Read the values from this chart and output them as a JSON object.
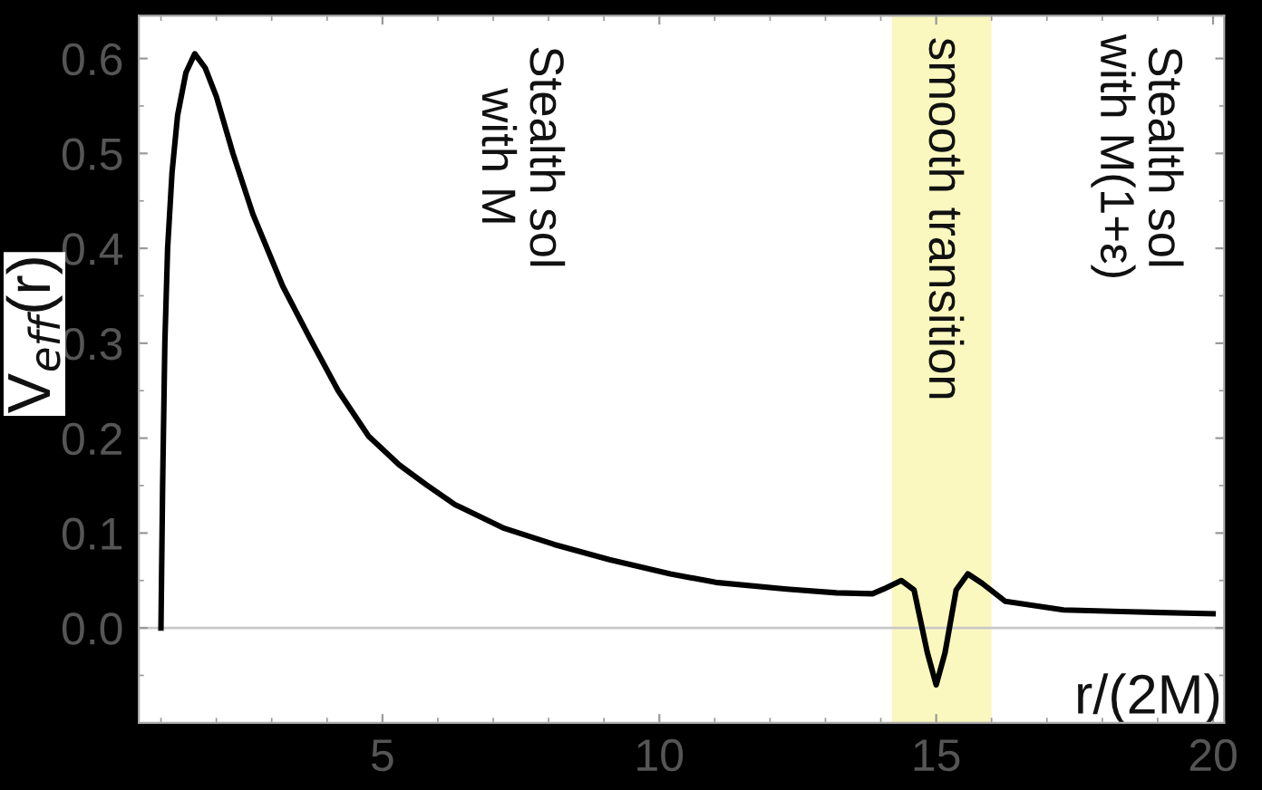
{
  "chart_data": {
    "type": "line",
    "xlabel": "r/(2M)",
    "ylabel": "V$_{eff}$(r)",
    "x": [
      1.0,
      1.03,
      1.07,
      1.12,
      1.2,
      1.3,
      1.45,
      1.61,
      1.8,
      2.0,
      2.3,
      2.66,
      3.2,
      3.7,
      4.2,
      4.75,
      5.3,
      5.79,
      6.31,
      7.2,
      8.1,
      9.1,
      10.2,
      11.02,
      12.3,
      13.2,
      13.85,
      14.05,
      14.37,
      14.6,
      14.84,
      15.0,
      15.16,
      15.36,
      15.57,
      15.83,
      16.25,
      17.3,
      18.5,
      20.0
    ],
    "series": [
      {
        "color": "#000000",
        "values": [
          0.0,
          0.15,
          0.3,
          0.4,
          0.48,
          0.54,
          0.585,
          0.605,
          0.59,
          0.56,
          0.5,
          0.436,
          0.36,
          0.304,
          0.25,
          0.202,
          0.172,
          0.151,
          0.13,
          0.105,
          0.088,
          0.072,
          0.057,
          0.048,
          0.041,
          0.037,
          0.036,
          0.041,
          0.05,
          0.04,
          -0.026,
          -0.06,
          -0.026,
          0.04,
          0.057,
          0.047,
          0.028,
          0.019,
          0.017,
          0.015
        ]
      }
    ],
    "xlim": [
      0.6,
      20.2
    ],
    "ylim": [
      -0.1,
      0.645
    ],
    "xticks": [
      5,
      10,
      15,
      20
    ],
    "yticks": [
      {
        "value": 0,
        "label": "0.0"
      },
      {
        "value": 0.1,
        "label": "0.1"
      },
      {
        "value": 0.2,
        "label": "0.2"
      },
      {
        "value": 0.3,
        "label": "0.3"
      },
      {
        "value": 0.4,
        "label": "0.4"
      },
      {
        "value": 0.5,
        "label": "0.5"
      },
      {
        "value": 0.6,
        "label": "0.6"
      }
    ],
    "ref_lines": [
      {
        "axis": "y",
        "value": 0,
        "color": "#c8c8c8"
      }
    ],
    "bands": [
      {
        "axis": "x",
        "from": 14.2,
        "to": 16.0,
        "label": "smooth transition",
        "color": "#fbf8bf"
      }
    ],
    "annotations": [
      "Stealth sol\nwith M",
      "Stealth sol\nwith M(1+ε)"
    ],
    "grid": false,
    "legend": false,
    "line_style": "solid",
    "marker": "none"
  }
}
